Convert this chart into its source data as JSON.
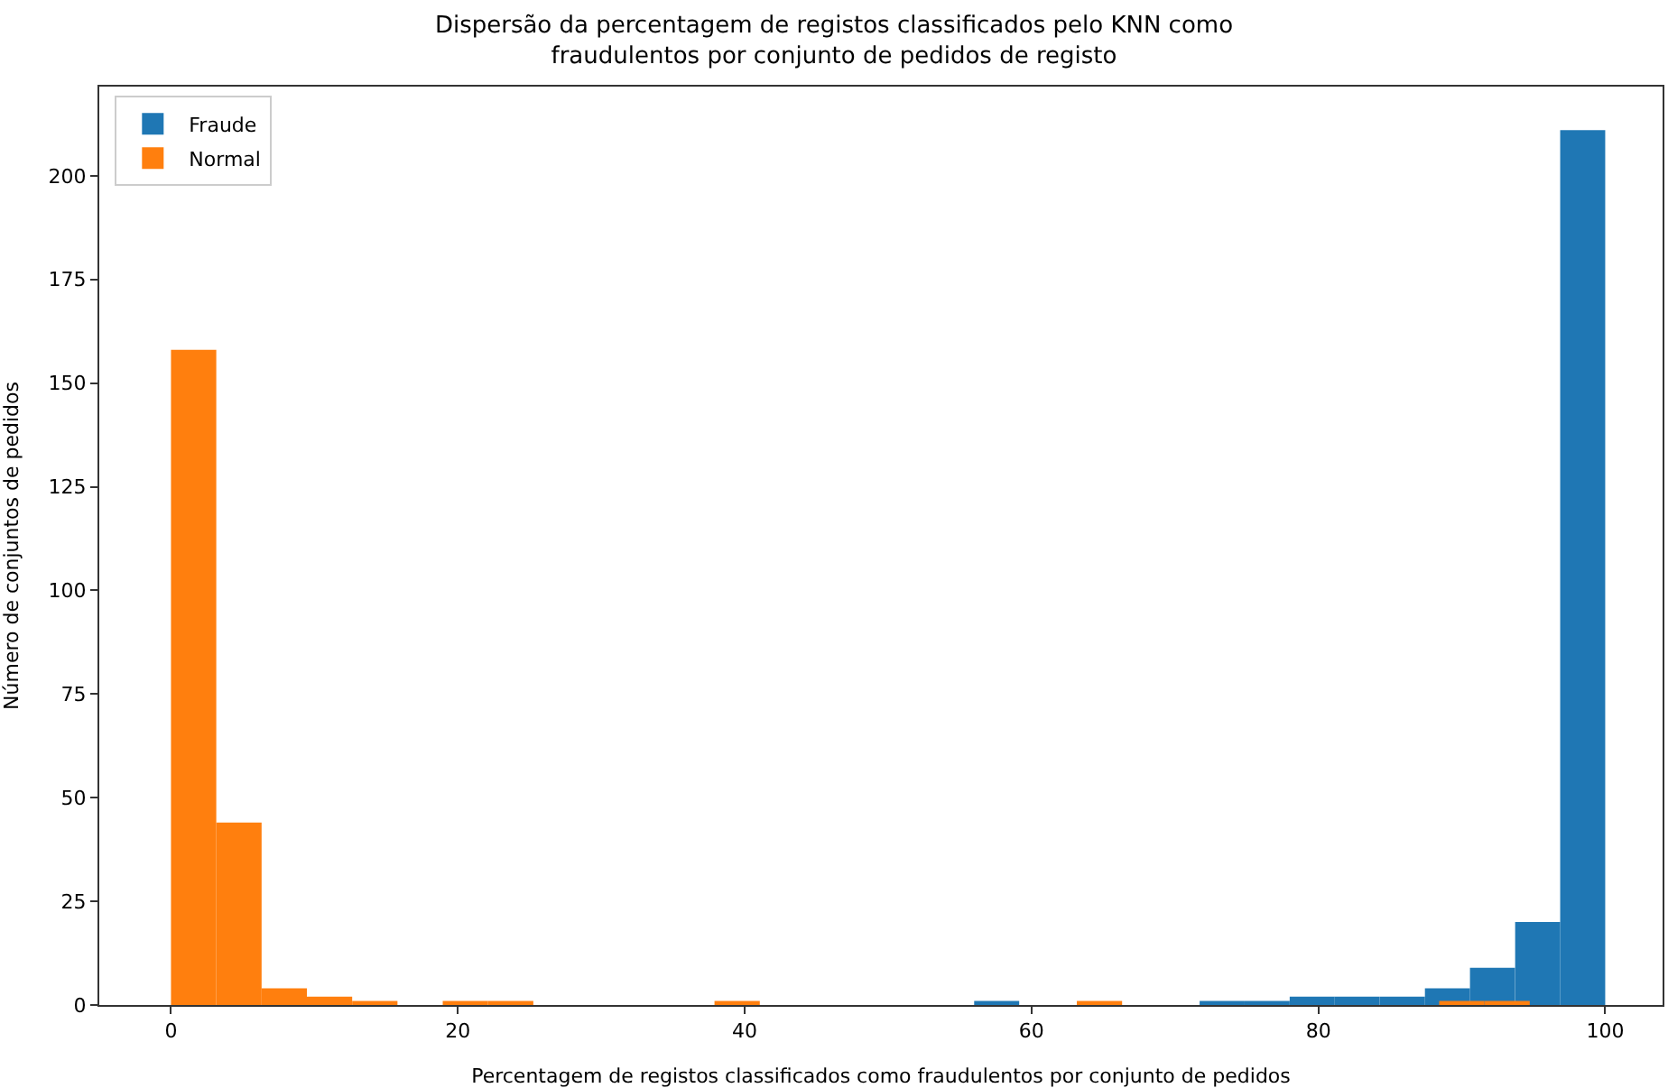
{
  "chart_data": {
    "type": "bar",
    "title": "Dispersão da percentagem de registos classificados pelo KNN como\nfraudulentos por conjunto de pedidos de registo",
    "xlabel": "Percentagem de registos classificados como fraudulentos por conjunto de pedidos",
    "ylabel": "Número de conjuntos de pedidos",
    "series": [
      {
        "name": "Fraude",
        "color": "#1f77b4",
        "x": [
          57.57,
          73.29,
          76.43,
          79.57,
          82.71,
          85.86,
          89.0,
          92.14,
          95.29,
          98.43
        ],
        "values": [
          1,
          1,
          1,
          2,
          2,
          2,
          4,
          9,
          20,
          211
        ]
      },
      {
        "name": "Normal",
        "color": "#ff7f0e",
        "x": [
          1.579,
          4.737,
          7.895,
          11.053,
          14.211,
          20.526,
          23.684,
          39.474,
          64.737,
          90.0,
          93.158
        ],
        "values": [
          158,
          44,
          4,
          2,
          1,
          1,
          1,
          1,
          1,
          1,
          1
        ]
      }
    ],
    "xlim": [
      -5,
      104
    ],
    "ylim": [
      0,
      221.5
    ],
    "xticks": [
      0,
      20,
      40,
      60,
      80,
      100
    ],
    "yticks": [
      0,
      25,
      50,
      75,
      100,
      125,
      150,
      175,
      200
    ],
    "legend": "top left"
  }
}
